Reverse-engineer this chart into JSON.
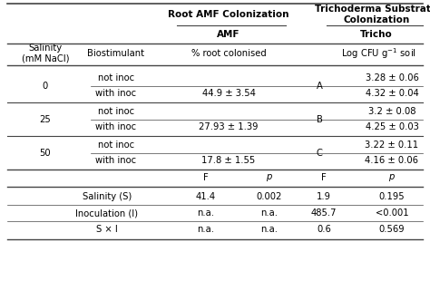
{
  "header1_left": "Root AMF Colonization",
  "header1_right": "Trichoderma Substrate\nColonization",
  "header2_left": "AMF",
  "header2_right": "Tricho",
  "bg_color": "#ffffff",
  "text_color": "#000000",
  "line_color": "#444444",
  "rows": [
    [
      "0",
      "not inoc",
      "",
      "A",
      "3.28 ± 0.06"
    ],
    [
      "",
      "with inoc",
      "44.9 ± 3.54",
      "",
      "4.32 ± 0.04"
    ],
    [
      "25",
      "not inoc",
      "",
      "B",
      "3.2 ± 0.08"
    ],
    [
      "",
      "with inoc",
      "27.93 ± 1.39",
      "",
      "4.25 ± 0.03"
    ],
    [
      "50",
      "not inoc",
      "",
      "C",
      "3.22 ± 0.11"
    ],
    [
      "",
      "with inoc",
      "17.8 ± 1.55",
      "",
      "4.16 ± 0.06"
    ]
  ],
  "stat_rows": [
    [
      "Salinity (S)",
      "41.4",
      "0.002",
      "1.9",
      "0.195"
    ],
    [
      "Inoculation (I)",
      "n.a.",
      "n.a.",
      "485.7",
      "<0.001"
    ],
    [
      "S × I",
      "n.a.",
      "n.a.",
      "0.6",
      "0.569"
    ]
  ]
}
